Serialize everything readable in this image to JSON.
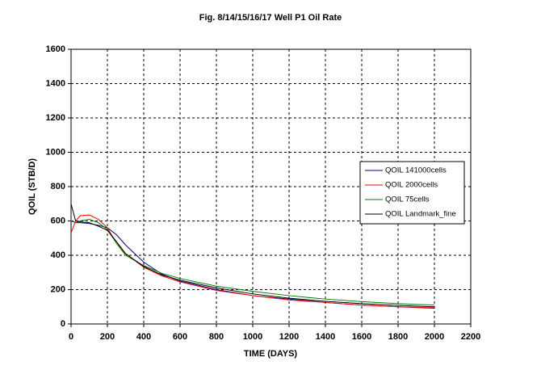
{
  "chart_data": {
    "type": "line",
    "title": "Fig. 8/14/15/16/17  Well P1 Oil Rate",
    "x_label": "TIME (DAYS)",
    "y_label": "QOIL (STB/D)",
    "x": [
      0,
      25,
      50,
      100,
      150,
      200,
      250,
      300,
      400,
      500,
      600,
      800,
      1000,
      1200,
      1400,
      1600,
      1800,
      2000
    ],
    "series": [
      {
        "name": "QOIL 141000cells",
        "color": "#000080",
        "values": [
          600,
          590,
          590,
          585,
          575,
          560,
          520,
          460,
          360,
          290,
          250,
          200,
          165,
          145,
          125,
          110,
          100,
          92
        ]
      },
      {
        "name": "QOIL 2000cells",
        "color": "#ff0000",
        "values": [
          530,
          600,
          630,
          635,
          610,
          560,
          470,
          410,
          330,
          280,
          245,
          195,
          165,
          140,
          125,
          110,
          100,
          95
        ]
      },
      {
        "name": "QOIL 75cells",
        "color": "#008000",
        "values": [
          600,
          590,
          600,
          610,
          590,
          550,
          470,
          400,
          340,
          295,
          265,
          220,
          190,
          165,
          145,
          130,
          118,
          110
        ]
      },
      {
        "name": "QOIL Landmark_fine",
        "color": "#000000",
        "values": [
          700,
          600,
          595,
          590,
          570,
          545,
          480,
          410,
          335,
          285,
          255,
          210,
          175,
          150,
          132,
          118,
          108,
          100
        ]
      }
    ],
    "xlim": [
      0,
      2200
    ],
    "xticks": [
      0,
      200,
      400,
      600,
      800,
      1000,
      1200,
      1400,
      1600,
      1800,
      2000,
      2200
    ],
    "ylim": [
      0,
      1600
    ],
    "yticks": [
      0,
      200,
      400,
      600,
      800,
      1000,
      1200,
      1400,
      1600
    ],
    "grid": true,
    "legend": "center-right"
  }
}
